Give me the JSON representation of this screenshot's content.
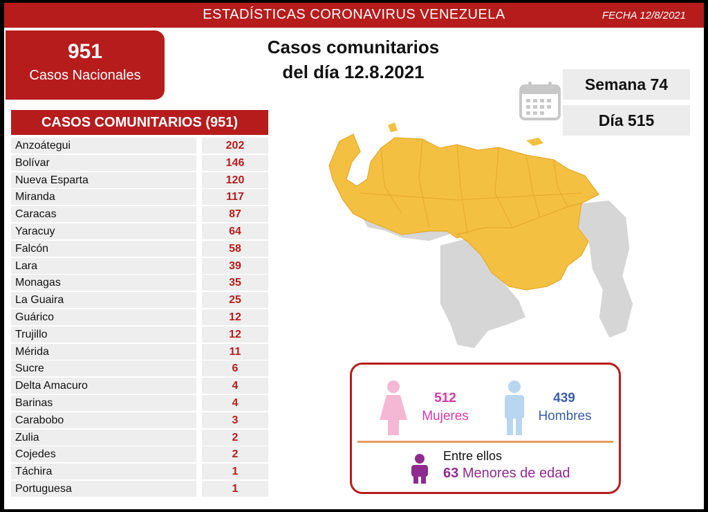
{
  "header": {
    "title": "ESTADÍSTICAS CORONAVIRUS VENEZUELA",
    "date": "FECHA 12/8/2021"
  },
  "national": {
    "count": "951",
    "label": "Casos Nacionales"
  },
  "headline": {
    "line1": "Casos comunitarios",
    "line2": "del día 12.8.2021"
  },
  "calendar": {
    "icon": "calendar-icon",
    "week": "Semana 74",
    "day": "Día 515"
  },
  "table": {
    "title": "CASOS COMUNITARIOS (951)",
    "rows": [
      {
        "name": "Anzoátegui",
        "value": "202"
      },
      {
        "name": "Bolívar",
        "value": "146"
      },
      {
        "name": "Nueva Esparta",
        "value": "120"
      },
      {
        "name": "Miranda",
        "value": "117"
      },
      {
        "name": "Caracas",
        "value": "87"
      },
      {
        "name": "Yaracuy",
        "value": "64"
      },
      {
        "name": "Falcón",
        "value": "58"
      },
      {
        "name": "Lara",
        "value": "39"
      },
      {
        "name": "Monagas",
        "value": "35"
      },
      {
        "name": "La Guaira",
        "value": "25"
      },
      {
        "name": "Guárico",
        "value": "12"
      },
      {
        "name": "Trujillo",
        "value": "12"
      },
      {
        "name": "Mérida",
        "value": "11"
      },
      {
        "name": "Sucre",
        "value": "6"
      },
      {
        "name": "Delta Amacuro",
        "value": "4"
      },
      {
        "name": "Barinas",
        "value": "4"
      },
      {
        "name": "Carabobo",
        "value": "3"
      },
      {
        "name": "Zulia",
        "value": "2"
      },
      {
        "name": "Cojedes",
        "value": "2"
      },
      {
        "name": "Táchira",
        "value": "1"
      },
      {
        "name": "Portuguesa",
        "value": "1"
      }
    ]
  },
  "map": {
    "icon": "venezuela-map",
    "highlight_color": "#f4c042",
    "other_color": "#d6d6d6"
  },
  "gender": {
    "women_count": "512",
    "women_label": "Mujeres",
    "men_count": "439",
    "men_label": "Hombres",
    "minors_intro": "Entre ellos",
    "minors_count": "63",
    "minors_label": "Menores de edad",
    "women_color": "#f4b8d4",
    "men_color": "#b9d6ee",
    "minor_color": "#8e2b8e"
  }
}
